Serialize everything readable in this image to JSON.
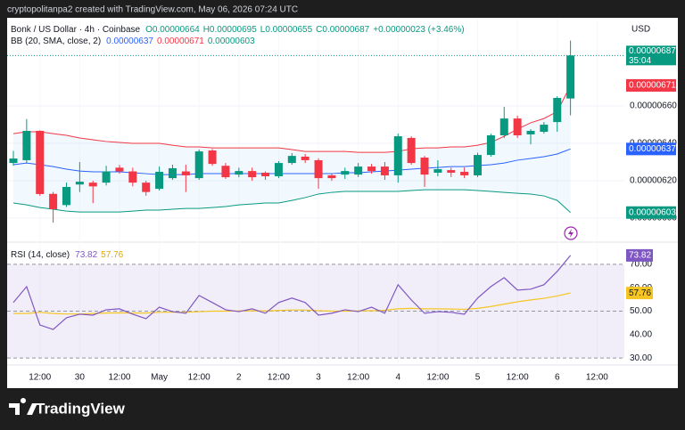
{
  "header": {
    "caption": "cryptopolitanpa2 created with TradingView.com, May 06, 2026 07:24 UTC",
    "brand": "TradingView"
  },
  "chart_data": [
    {
      "type": "candlestick",
      "title": "Bonk / US Dollar · 4h · Coinbase",
      "ohlc_legend": [
        "O0.00000664",
        "H0.00000695",
        "L0.00000655",
        "C0.00000687"
      ],
      "change": "+0.00000023 (+3.46%)",
      "currency": "USD",
      "countdown": "35:04",
      "last_label": "0.00000687",
      "up_color": "#089981",
      "down_color": "#f23645",
      "open": [
        6.295e-06,
        6.31e-06,
        6.467e-06,
        6.13e-06,
        6.07e-06,
        6.18e-06,
        6.19e-06,
        6.19e-06,
        6.27e-06,
        6.25e-06,
        6.19e-06,
        6.157e-06,
        6.214e-06,
        6.25e-06,
        6.214e-06,
        6.362e-06,
        6.28e-06,
        6.233e-06,
        6.252e-06,
        6.243e-06,
        6.224e-06,
        6.295e-06,
        6.329e-06,
        6.31e-06,
        6.229e-06,
        6.233e-06,
        6.233e-06,
        6.276e-06,
        6.276e-06,
        6.229e-06,
        6.429e-06,
        6.324e-06,
        6.243e-06,
        6.257e-06,
        6.248e-06,
        6.229e-06,
        6.338e-06,
        6.443e-06,
        6.533e-06,
        6.448e-06,
        6.462e-06,
        6.514e-06,
        6.64e-06
      ],
      "high": [
        6.36e-06,
        6.53e-06,
        6.47e-06,
        6.14e-06,
        6.19e-06,
        6.3e-06,
        6.2e-06,
        6.28e-06,
        6.285e-06,
        6.27e-06,
        6.2e-06,
        6.276e-06,
        6.286e-06,
        6.286e-06,
        6.367e-06,
        6.37e-06,
        6.295e-06,
        6.27e-06,
        6.27e-06,
        6.25e-06,
        6.305e-06,
        6.348e-06,
        6.343e-06,
        6.32e-06,
        6.238e-06,
        6.27e-06,
        6.295e-06,
        6.29e-06,
        6.3e-06,
        6.452e-06,
        6.438e-06,
        6.333e-06,
        6.31e-06,
        6.27e-06,
        6.271e-06,
        6.35e-06,
        6.452e-06,
        6.595e-06,
        6.548e-06,
        6.476e-06,
        6.514e-06,
        6.652e-06,
        6.95e-06
      ],
      "low": [
        6.28e-06,
        6.295e-06,
        6.12e-06,
        5.976e-06,
        6.06e-06,
        6.14e-06,
        6.08e-06,
        6.175e-06,
        6.238e-06,
        6.17e-06,
        6.12e-06,
        6.148e-06,
        6.205e-06,
        6.14e-06,
        6.205e-06,
        6.28e-06,
        6.21e-06,
        6.219e-06,
        6.2e-06,
        6.205e-06,
        6.214e-06,
        6.286e-06,
        6.295e-06,
        6.157e-06,
        6.2e-06,
        6.21e-06,
        6.22e-06,
        6.238e-06,
        6.205e-06,
        6.19e-06,
        6.286e-06,
        6.167e-06,
        6.224e-06,
        6.22e-06,
        6.214e-06,
        6.22e-06,
        6.329e-06,
        6.429e-06,
        6.429e-06,
        6.395e-06,
        6.452e-06,
        6.462e-06,
        6.55e-06
      ],
      "close": [
        6.319e-06,
        6.467e-06,
        6.129e-06,
        6.048e-06,
        6.167e-06,
        6.195e-06,
        6.17e-06,
        6.25e-06,
        6.25e-06,
        6.19e-06,
        6.14e-06,
        6.248e-06,
        6.267e-06,
        6.229e-06,
        6.357e-06,
        6.29e-06,
        6.219e-06,
        6.252e-06,
        6.219e-06,
        6.224e-06,
        6.295e-06,
        6.333e-06,
        6.31e-06,
        6.214e-06,
        6.214e-06,
        6.252e-06,
        6.276e-06,
        6.252e-06,
        6.229e-06,
        6.438e-06,
        6.295e-06,
        6.233e-06,
        6.262e-06,
        6.243e-06,
        6.229e-06,
        6.338e-06,
        6.443e-06,
        6.533e-06,
        6.443e-06,
        6.467e-06,
        6.5e-06,
        6.643e-06,
        6.87e-06
      ],
      "indicator": "BB (20, SMA, close, 2)",
      "bands": [
        {
          "legend": "0.00000637",
          "color": "#2962ff",
          "values": [
            6.286e-06,
            6.295e-06,
            6.286e-06,
            6.276e-06,
            6.262e-06,
            6.252e-06,
            6.248e-06,
            6.248e-06,
            6.248e-06,
            6.243e-06,
            6.238e-06,
            6.233e-06,
            6.233e-06,
            6.233e-06,
            6.238e-06,
            6.238e-06,
            6.238e-06,
            6.238e-06,
            6.238e-06,
            6.238e-06,
            6.238e-06,
            6.238e-06,
            6.238e-06,
            6.238e-06,
            6.238e-06,
            6.243e-06,
            6.243e-06,
            6.248e-06,
            6.252e-06,
            6.257e-06,
            6.262e-06,
            6.267e-06,
            6.271e-06,
            6.276e-06,
            6.276e-06,
            6.281e-06,
            6.286e-06,
            6.295e-06,
            6.31e-06,
            6.319e-06,
            6.329e-06,
            6.343e-06,
            6.37e-06
          ]
        },
        {
          "legend": "0.00000671",
          "color": "#f23645",
          "values": [
            6.452e-06,
            6.462e-06,
            6.462e-06,
            6.452e-06,
            6.443e-06,
            6.429e-06,
            6.419e-06,
            6.41e-06,
            6.405e-06,
            6.4e-06,
            6.4e-06,
            6.4e-06,
            6.39e-06,
            6.381e-06,
            6.381e-06,
            6.376e-06,
            6.376e-06,
            6.376e-06,
            6.376e-06,
            6.376e-06,
            6.376e-06,
            6.367e-06,
            6.357e-06,
            6.357e-06,
            6.357e-06,
            6.357e-06,
            6.352e-06,
            6.352e-06,
            6.352e-06,
            6.357e-06,
            6.371e-06,
            6.376e-06,
            6.376e-06,
            6.381e-06,
            6.381e-06,
            6.39e-06,
            6.405e-06,
            6.438e-06,
            6.476e-06,
            6.51e-06,
            6.533e-06,
            6.57e-06,
            6.71e-06
          ]
        },
        {
          "legend": "0.00000603",
          "color": "#089981",
          "values": [
            6.081e-06,
            6.071e-06,
            6.057e-06,
            6.048e-06,
            6.038e-06,
            6.033e-06,
            6.033e-06,
            6.033e-06,
            6.033e-06,
            6.038e-06,
            6.043e-06,
            6.043e-06,
            6.048e-06,
            6.052e-06,
            6.052e-06,
            6.057e-06,
            6.062e-06,
            6.071e-06,
            6.076e-06,
            6.081e-06,
            6.081e-06,
            6.095e-06,
            6.11e-06,
            6.129e-06,
            6.138e-06,
            6.143e-06,
            6.143e-06,
            6.143e-06,
            6.143e-06,
            6.143e-06,
            6.148e-06,
            6.152e-06,
            6.152e-06,
            6.152e-06,
            6.152e-06,
            6.148e-06,
            6.143e-06,
            6.138e-06,
            6.133e-06,
            6.129e-06,
            6.119e-06,
            6.095e-06,
            6.03e-06
          ]
        }
      ],
      "ylim": [
        5.905e-06,
        7.062e-06
      ],
      "yticks": [
        {
          "value": 6.6e-06,
          "label": "0.00000660"
        },
        {
          "value": 6.4e-06,
          "label": "0.00000640"
        },
        {
          "value": 6.2e-06,
          "label": "0.00000620"
        },
        {
          "value": 6e-06,
          "label": "0.00000600"
        }
      ],
      "xlim": [
        -0.47,
        46.06
      ],
      "xticks": [
        {
          "value": 2,
          "label": "12:00"
        },
        {
          "value": 5,
          "label": "30"
        },
        {
          "value": 8,
          "label": "12:00"
        },
        {
          "value": 11,
          "label": "May"
        },
        {
          "value": 14,
          "label": "12:00"
        },
        {
          "value": 17,
          "label": "2"
        },
        {
          "value": 20,
          "label": "12:00"
        },
        {
          "value": 23,
          "label": "3"
        },
        {
          "value": 26,
          "label": "12:00"
        },
        {
          "value": 29,
          "label": "4"
        },
        {
          "value": 32,
          "label": "12:00"
        },
        {
          "value": 35,
          "label": "5"
        },
        {
          "value": 38,
          "label": "12:00"
        },
        {
          "value": 41,
          "label": "6"
        },
        {
          "value": 44,
          "label": "12:00"
        }
      ]
    },
    {
      "type": "line",
      "title": "RSI (14, close)",
      "series": [
        {
          "name": "73.82",
          "color": "#7e57c2",
          "values": [
            53.7,
            60.5,
            44.1,
            42.2,
            47.2,
            48.7,
            48.3,
            50.6,
            51,
            48.7,
            46.8,
            51.7,
            49.8,
            49.1,
            56.7,
            53.7,
            50.6,
            49.8,
            51,
            49.1,
            53.7,
            55.6,
            53.7,
            48.3,
            49.1,
            50.6,
            49.8,
            51.7,
            49.1,
            61.3,
            54.8,
            49.1,
            49.8,
            49.5,
            48.7,
            55.6,
            60.5,
            64.3,
            59,
            59.4,
            61.3,
            67,
            73.82
          ]
        },
        {
          "name": "57.76",
          "color": "#f5c623",
          "values": [
            49,
            49,
            49.5,
            49,
            48.8,
            48.8,
            49,
            49.2,
            49.3,
            49.2,
            49.2,
            49.5,
            49.6,
            49.5,
            49.8,
            50,
            50,
            50.1,
            50.2,
            50.1,
            50.3,
            50.5,
            50.5,
            50.2,
            50,
            50,
            50.1,
            50.2,
            50.4,
            51,
            51.2,
            51,
            51,
            50.9,
            50.8,
            51.2,
            52,
            53,
            54,
            54.8,
            55.5,
            56.5,
            57.76
          ]
        }
      ],
      "ylim": [
        27,
        77.2
      ],
      "yticks": [
        {
          "value": 70,
          "label": "70.00"
        },
        {
          "value": 60,
          "label": "60.00"
        },
        {
          "value": 50,
          "label": "50.00"
        },
        {
          "value": 40,
          "label": "40.00"
        },
        {
          "value": 30,
          "label": "30.00"
        }
      ]
    }
  ]
}
